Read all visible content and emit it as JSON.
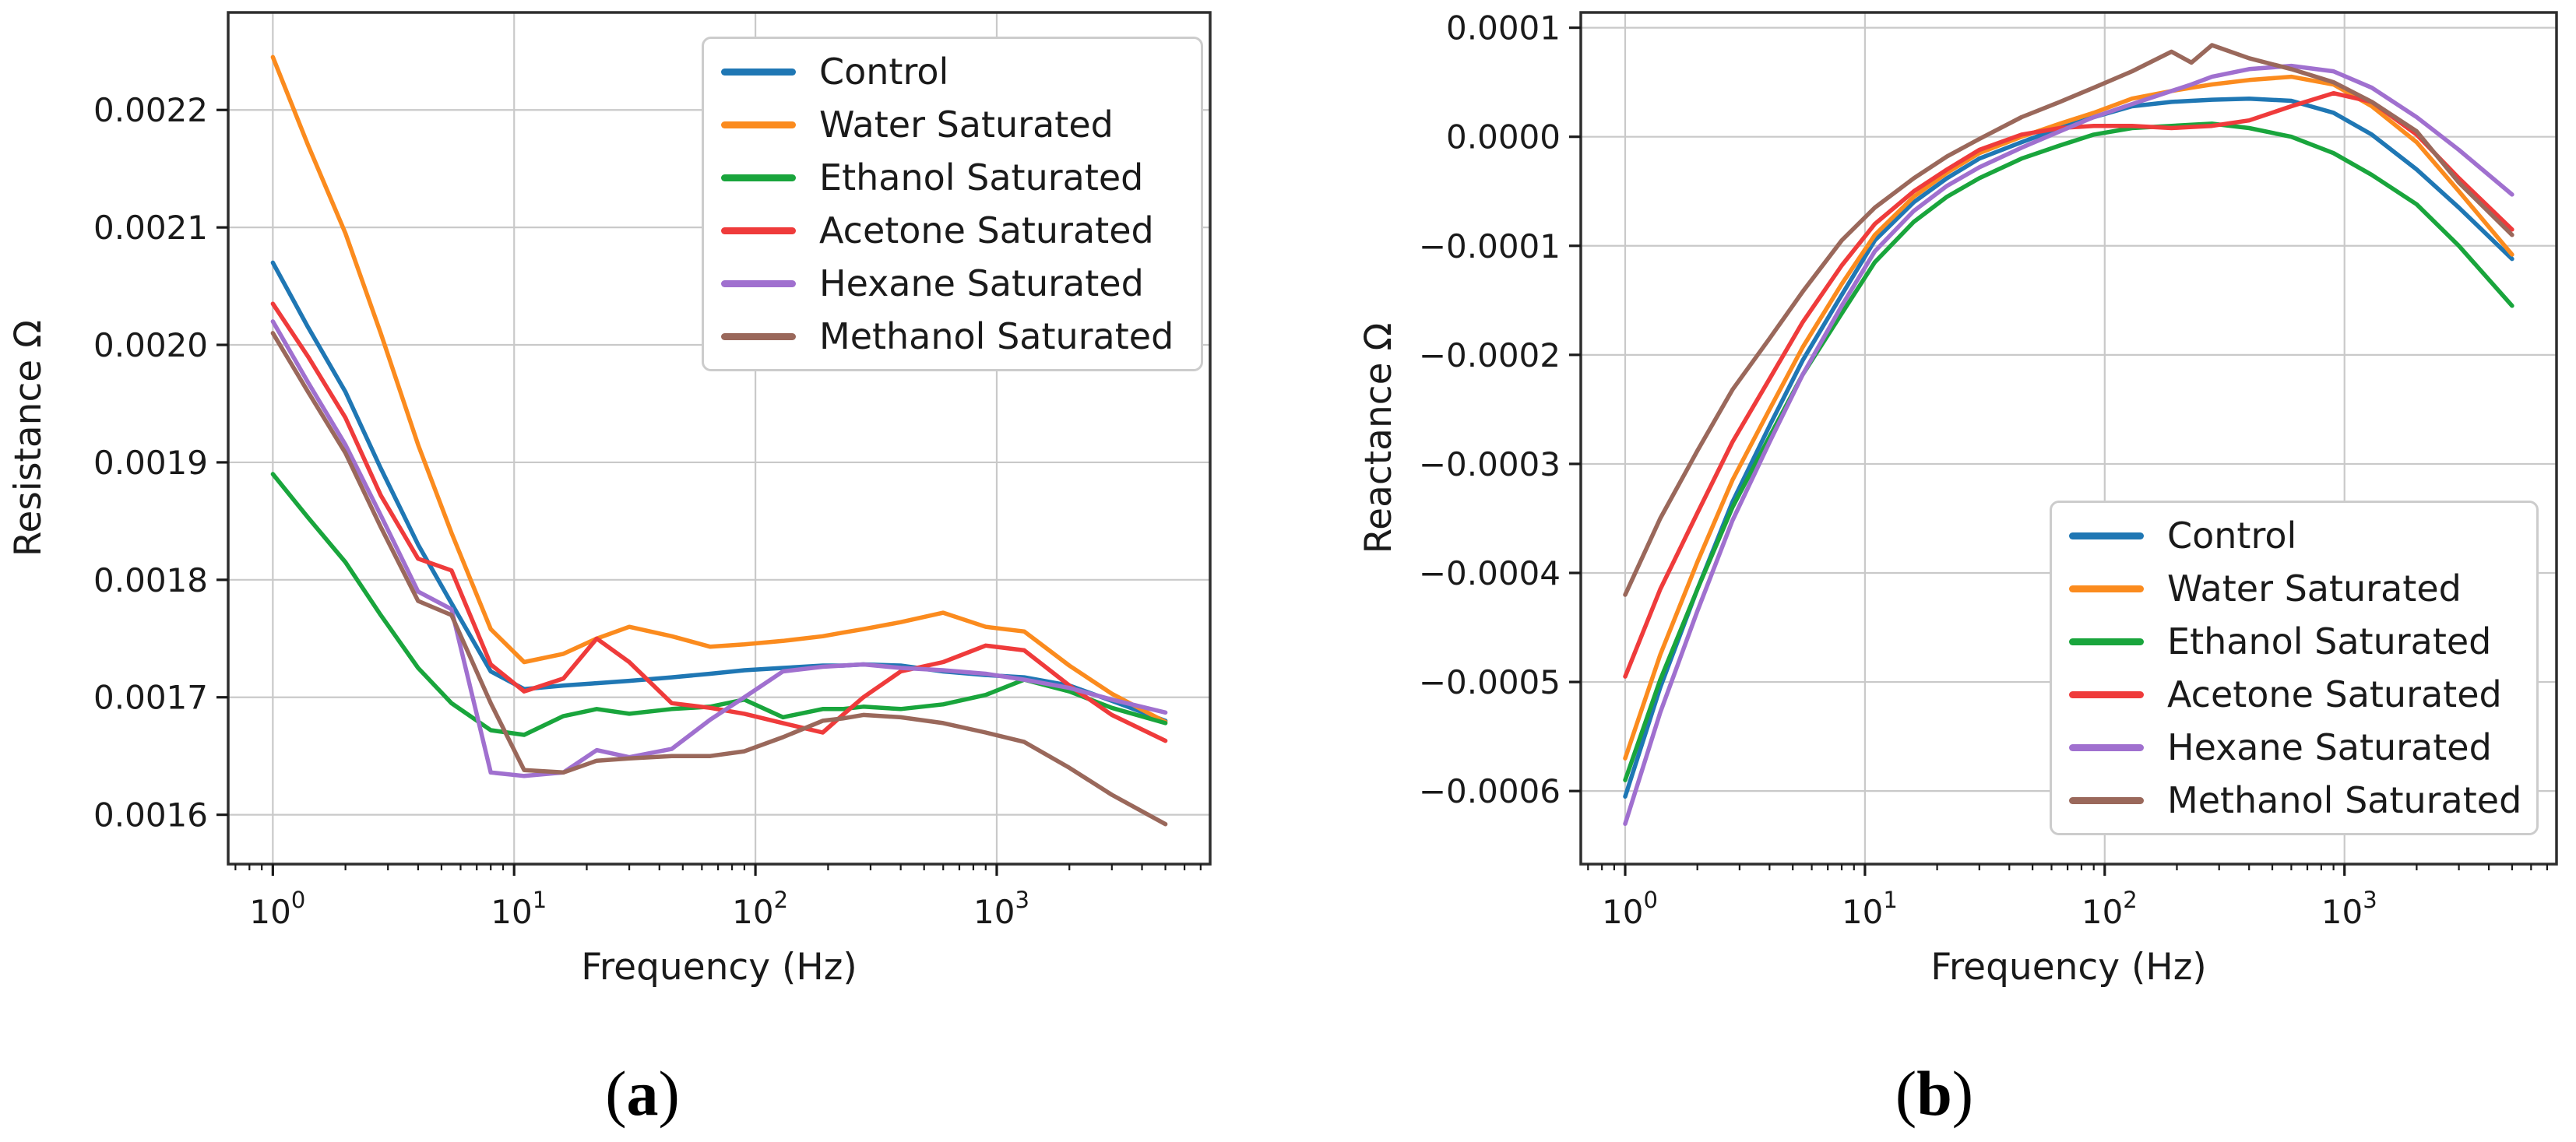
{
  "figure": {
    "background": "#ffffff",
    "text_color": "#1a1a1a",
    "grid_color": "#c9c9c9",
    "spine_color": "#2e2e2e",
    "captions": {
      "a": {
        "open": "(",
        "label": "a",
        "close": ")"
      },
      "b": {
        "open": "(",
        "label": "b",
        "close": ")"
      }
    }
  },
  "chart_data": [
    {
      "type": "line",
      "panel": "a",
      "xlabel": "Frequency (Hz)",
      "ylabel": "Resistance Ω",
      "xscale": "log",
      "grid": true,
      "legend_position": "upper right",
      "xlim": [
        0.653,
        7662
      ],
      "ylim": [
        0.001558,
        0.002283
      ],
      "x_ticks": [
        1,
        10,
        100,
        1000
      ],
      "x_tick_labels": [
        "10^0",
        "10^1",
        "10^2",
        "10^3"
      ],
      "x_minor_ticks": [
        0.7,
        0.8,
        0.9,
        2,
        3,
        4,
        5,
        6,
        7,
        8,
        9,
        20,
        30,
        40,
        50,
        60,
        70,
        80,
        90,
        200,
        300,
        400,
        500,
        600,
        700,
        800,
        900,
        2000,
        3000,
        4000,
        5000,
        6000,
        7000
      ],
      "y_ticks": [
        0.0016,
        0.0017,
        0.0018,
        0.0019,
        0.002,
        0.0021,
        0.0022
      ],
      "y_tick_labels": [
        "0.0016",
        "0.0017",
        "0.0018",
        "0.0019",
        "0.0020",
        "0.0021",
        "0.0022"
      ],
      "x": [
        1,
        1.4,
        2,
        2.8,
        4,
        5.5,
        8,
        11,
        16,
        22,
        30,
        45,
        65,
        90,
        130,
        190,
        230,
        280,
        400,
        600,
        900,
        1300,
        2000,
        3000,
        5000
      ],
      "series": [
        {
          "name": "Control",
          "color": "#1f77b4",
          "values": [
            0.00207,
            0.002015,
            0.00196,
            0.001895,
            0.00183,
            0.00178,
            0.001722,
            0.001707,
            0.00171,
            0.001712,
            0.001714,
            0.001717,
            0.00172,
            0.001723,
            0.001725,
            0.001727,
            0.001727,
            0.001728,
            0.001727,
            0.001722,
            0.001719,
            0.001717,
            0.00171,
            0.001697,
            0.00168
          ]
        },
        {
          "name": "Water Saturated",
          "color": "#fb8b1e",
          "values": [
            0.002245,
            0.00217,
            0.002095,
            0.00201,
            0.001915,
            0.00184,
            0.001758,
            0.00173,
            0.001737,
            0.00175,
            0.00176,
            0.001752,
            0.001743,
            0.001745,
            0.001748,
            0.001752,
            0.001755,
            0.001758,
            0.001764,
            0.001772,
            0.00176,
            0.001756,
            0.001727,
            0.001703,
            0.001679
          ]
        },
        {
          "name": "Ethanol Saturated",
          "color": "#19a53c",
          "values": [
            0.00189,
            0.001853,
            0.001815,
            0.00177,
            0.001725,
            0.001695,
            0.001672,
            0.001668,
            0.001684,
            0.00169,
            0.001686,
            0.00169,
            0.001692,
            0.001698,
            0.001683,
            0.00169,
            0.00169,
            0.001692,
            0.00169,
            0.001694,
            0.001702,
            0.001715,
            0.001705,
            0.001691,
            0.001678
          ]
        },
        {
          "name": "Acetone Saturated",
          "color": "#ef3b3b",
          "values": [
            0.002035,
            0.00199,
            0.001938,
            0.001872,
            0.001818,
            0.001808,
            0.001728,
            0.001705,
            0.001716,
            0.00175,
            0.00173,
            0.001695,
            0.001691,
            0.001686,
            0.001678,
            0.00167,
            0.001685,
            0.0017,
            0.001722,
            0.00173,
            0.001744,
            0.00174,
            0.00171,
            0.001685,
            0.001663
          ]
        },
        {
          "name": "Hexane Saturated",
          "color": "#a070cf",
          "values": [
            0.00202,
            0.001968,
            0.001915,
            0.001855,
            0.00179,
            0.001775,
            0.001636,
            0.001633,
            0.001636,
            0.001655,
            0.001649,
            0.001656,
            0.001681,
            0.0017,
            0.001722,
            0.001726,
            0.001727,
            0.001728,
            0.001725,
            0.001723,
            0.00172,
            0.001715,
            0.001708,
            0.001698,
            0.001687
          ]
        },
        {
          "name": "Methanol Saturated",
          "color": "#9a685b",
          "values": [
            0.00201,
            0.00196,
            0.001908,
            0.001845,
            0.001782,
            0.00177,
            0.001695,
            0.001638,
            0.001636,
            0.001646,
            0.001648,
            0.00165,
            0.00165,
            0.001654,
            0.001666,
            0.00168,
            0.001682,
            0.001685,
            0.001683,
            0.001678,
            0.00167,
            0.001662,
            0.00164,
            0.001617,
            0.001592
          ]
        }
      ]
    },
    {
      "type": "line",
      "panel": "b",
      "xlabel": "Frequency (Hz)",
      "ylabel": "Reactance Ω",
      "xscale": "log",
      "grid": true,
      "legend_position": "lower right",
      "xlim": [
        0.653,
        7662
      ],
      "ylim": [
        -0.000667,
        0.000114
      ],
      "x_ticks": [
        1,
        10,
        100,
        1000
      ],
      "x_tick_labels": [
        "10^0",
        "10^1",
        "10^2",
        "10^3"
      ],
      "x_minor_ticks": [
        0.7,
        0.8,
        0.9,
        2,
        3,
        4,
        5,
        6,
        7,
        8,
        9,
        20,
        30,
        40,
        50,
        60,
        70,
        80,
        90,
        200,
        300,
        400,
        500,
        600,
        700,
        800,
        900,
        2000,
        3000,
        4000,
        5000,
        6000,
        7000
      ],
      "y_ticks": [
        0.0001,
        0.0,
        -0.0001,
        -0.0002,
        -0.0003,
        -0.0004,
        -0.0005,
        -0.0006
      ],
      "y_tick_labels": [
        "0.0001",
        "0.0000",
        "−0.0001",
        "−0.0002",
        "−0.0003",
        "−0.0004",
        "−0.0005",
        "−0.0006"
      ],
      "x": [
        1,
        1.4,
        2,
        2.8,
        4,
        5.5,
        8,
        11,
        16,
        22,
        30,
        45,
        65,
        90,
        130,
        190,
        230,
        280,
        400,
        600,
        900,
        1300,
        2000,
        3000,
        5000
      ],
      "series": [
        {
          "name": "Control",
          "color": "#1f77b4",
          "values": [
            -0.000605,
            -0.000505,
            -0.000415,
            -0.000335,
            -0.000265,
            -0.000205,
            -0.000145,
            -9.5e-05,
            -6e-05,
            -3.8e-05,
            -2e-05,
            -5e-06,
            8e-06,
            1.8e-05,
            2.8e-05,
            3.2e-05,
            3.3e-05,
            3.4e-05,
            3.5e-05,
            3.3e-05,
            2.2e-05,
            2e-06,
            -3e-05,
            -6.5e-05,
            -0.000112
          ]
        },
        {
          "name": "Water Saturated",
          "color": "#fb8b1e",
          "values": [
            -0.00057,
            -0.000475,
            -0.00039,
            -0.000315,
            -0.00025,
            -0.000193,
            -0.000135,
            -9e-05,
            -5.5e-05,
            -3.3e-05,
            -1.5e-05,
            0.0,
            1.2e-05,
            2.2e-05,
            3.5e-05,
            4.2e-05,
            4.5e-05,
            4.8e-05,
            5.2e-05,
            5.5e-05,
            4.8e-05,
            2.8e-05,
            -5e-06,
            -5e-05,
            -0.000108
          ]
        },
        {
          "name": "Ethanol Saturated",
          "color": "#19a53c",
          "values": [
            -0.00059,
            -0.000498,
            -0.000415,
            -0.00034,
            -0.000275,
            -0.000218,
            -0.000162,
            -0.000115,
            -7.8e-05,
            -5.5e-05,
            -3.8e-05,
            -2e-05,
            -8e-06,
            2e-06,
            8e-06,
            1e-05,
            1.1e-05,
            1.2e-05,
            8e-06,
            0.0,
            -1.5e-05,
            -3.5e-05,
            -6.2e-05,
            -0.0001,
            -0.000155
          ]
        },
        {
          "name": "Acetone Saturated",
          "color": "#ef3b3b",
          "values": [
            -0.000495,
            -0.000415,
            -0.000345,
            -0.00028,
            -0.000222,
            -0.00017,
            -0.000118,
            -8e-05,
            -5e-05,
            -3e-05,
            -1.2e-05,
            2e-06,
            8e-06,
            1e-05,
            1e-05,
            8e-06,
            9e-06,
            1e-05,
            1.5e-05,
            2.8e-05,
            4e-05,
            3.2e-05,
            2e-06,
            -3.8e-05,
            -8.5e-05
          ]
        },
        {
          "name": "Hexane Saturated",
          "color": "#a070cf",
          "values": [
            -0.00063,
            -0.000528,
            -0.000435,
            -0.000352,
            -0.00028,
            -0.000218,
            -0.000155,
            -0.000105,
            -6.8e-05,
            -4.5e-05,
            -2.8e-05,
            -1e-05,
            5e-06,
            1.8e-05,
            3e-05,
            4.2e-05,
            4.8e-05,
            5.5e-05,
            6.2e-05,
            6.5e-05,
            6e-05,
            4.5e-05,
            1.8e-05,
            -1.2e-05,
            -5.3e-05
          ]
        },
        {
          "name": "Methanol Saturated",
          "color": "#9a685b",
          "values": [
            -0.00042,
            -0.00035,
            -0.000288,
            -0.000232,
            -0.000185,
            -0.000142,
            -9.5e-05,
            -6.5e-05,
            -3.8e-05,
            -1.8e-05,
            -2e-06,
            1.8e-05,
            3.2e-05,
            4.5e-05,
            6e-05,
            7.8e-05,
            6.8e-05,
            8.4e-05,
            7.2e-05,
            6.2e-05,
            5e-05,
            3.2e-05,
            5e-06,
            -4.2e-05,
            -9e-05
          ]
        }
      ]
    }
  ]
}
